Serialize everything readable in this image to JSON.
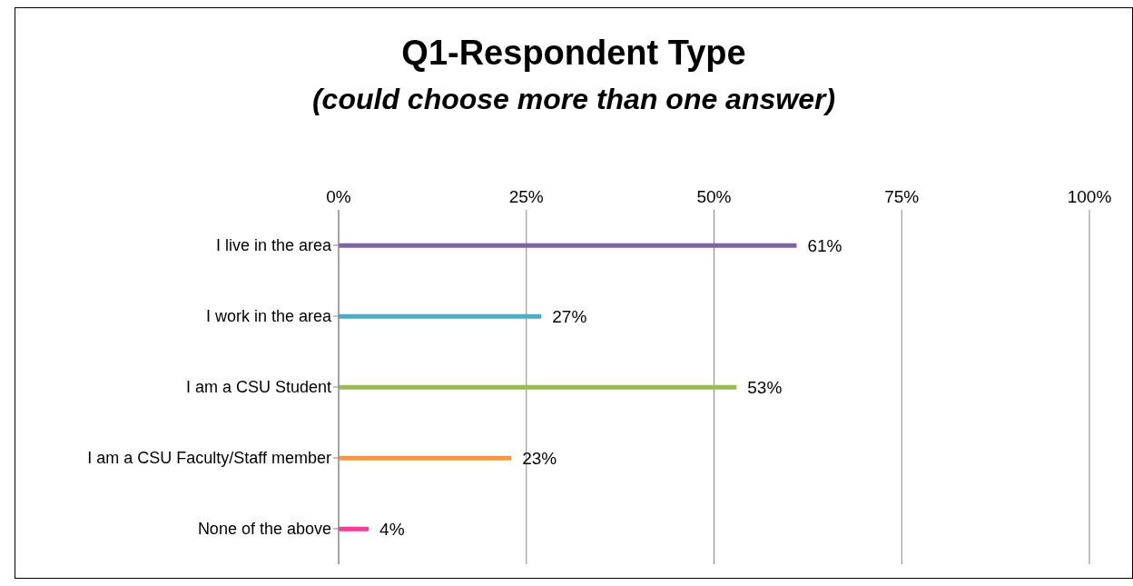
{
  "chart_data": {
    "type": "bar",
    "orientation": "horizontal",
    "title": "Q1-Respondent Type",
    "subtitle": "(could choose more than one answer)",
    "categories": [
      "I live in the area",
      "I work in the area",
      "I am a CSU Student",
      "I am a CSU Faculty/Staff member",
      "None of the above"
    ],
    "values": [
      61,
      27,
      53,
      23,
      4
    ],
    "colors": [
      "#8064a2",
      "#4bacc6",
      "#9bbb59",
      "#f79646",
      "#f73b9c"
    ],
    "value_labels": [
      "61%",
      "27%",
      "53%",
      "23%",
      "4%"
    ],
    "xlim": [
      0,
      100
    ],
    "xticks": [
      {
        "value": 0,
        "label": "0%"
      },
      {
        "value": 25,
        "label": "25%"
      },
      {
        "value": 50,
        "label": "50%"
      },
      {
        "value": 75,
        "label": "75%"
      },
      {
        "value": 100,
        "label": "100%"
      }
    ],
    "grid": "x",
    "legend": false
  }
}
